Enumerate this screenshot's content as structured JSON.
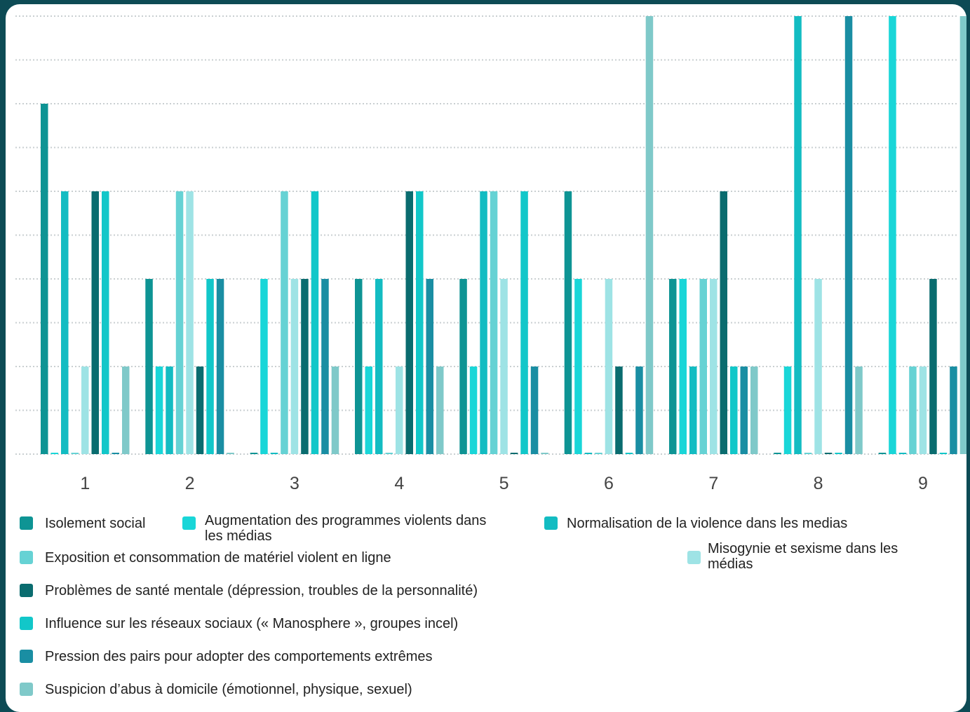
{
  "chart_data": {
    "type": "bar",
    "categories": [
      "1",
      "2",
      "3",
      "4",
      "5",
      "6",
      "7",
      "8",
      "9"
    ],
    "ylim": [
      0,
      5
    ],
    "grid": true,
    "legend_position": "bottom",
    "series": [
      {
        "name": "Isolement social",
        "color": "#0e9494",
        "values": [
          4,
          2,
          0,
          2,
          2,
          3,
          2,
          0,
          0
        ]
      },
      {
        "name": "Augmentation des programmes violents dans les médias",
        "color": "#19d6d8",
        "values": [
          0,
          1,
          2,
          1,
          1,
          2,
          2,
          1,
          5
        ]
      },
      {
        "name": "Normalisation de la violence dans les medias",
        "color": "#13bcc2",
        "values": [
          3,
          1,
          0,
          2,
          3,
          0,
          1,
          5,
          0
        ]
      },
      {
        "name": "Exposition et consommation de matériel violent en ligne",
        "color": "#66d2d4",
        "values": [
          0,
          3,
          3,
          0,
          3,
          0,
          2,
          0,
          1
        ]
      },
      {
        "name": "Misogynie et sexisme dans les médias",
        "color": "#9ee3e5",
        "values": [
          1,
          3,
          2,
          1,
          2,
          2,
          2,
          2,
          1
        ]
      },
      {
        "name": "Problèmes de santé mentale (dépression, troubles de la personnalité)",
        "color": "#0a6c6f",
        "values": [
          3,
          1,
          2,
          3,
          0,
          1,
          3,
          0,
          2
        ]
      },
      {
        "name": "Influence sur les réseaux sociaux (« Manosphere », groupes incel)",
        "color": "#12c7c9",
        "values": [
          3,
          2,
          3,
          3,
          3,
          0,
          1,
          0,
          0
        ]
      },
      {
        "name": "Pression des pairs pour adopter des comportements extrêmes",
        "color": "#1a8ea3",
        "values": [
          0,
          2,
          2,
          2,
          1,
          1,
          1,
          5,
          1
        ]
      },
      {
        "name": "Suspicion d’abus à domicile (émotionnel, physique, sexuel)",
        "color": "#7fc9c9",
        "values": [
          1,
          0,
          1,
          1,
          0,
          5,
          1,
          1,
          5
        ]
      }
    ]
  }
}
